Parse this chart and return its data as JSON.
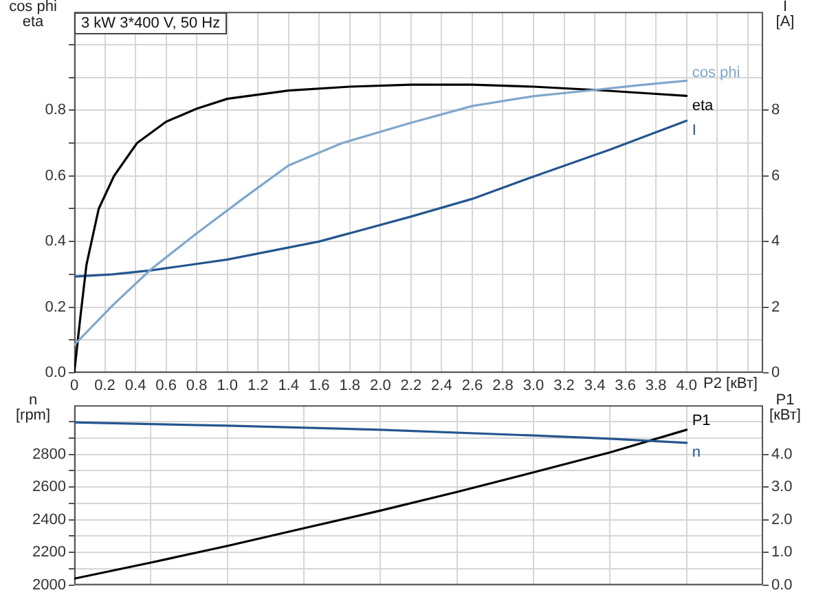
{
  "chart_data": [
    {
      "type": "line",
      "title": "3 kW 3*400 V, 50 Hz",
      "xlabel": "P2 [кВт]",
      "ylabel": "cos phi\neta",
      "y2label": "I\n[A]",
      "xlim": [
        0,
        4.5
      ],
      "xticks": [
        0,
        0.2,
        0.4,
        0.6,
        0.8,
        {
          "value": 1,
          "label": "1.0"
        },
        1.2,
        1.4,
        1.6,
        1.8,
        {
          "value": 2,
          "label": "2.0"
        },
        2.2,
        2.4,
        2.6,
        2.8,
        {
          "value": 3,
          "label": "3.0"
        },
        3.2,
        3.4,
        3.6,
        3.8,
        {
          "value": 4,
          "label": "4.0"
        },
        {
          "value": 4.2,
          "label": null
        },
        {
          "value": 4.4,
          "label": null
        }
      ],
      "ylim": [
        0,
        1.1
      ],
      "yticks": [
        {
          "value": 0,
          "label": "0.0"
        },
        {
          "value": 0.1,
          "label": null
        },
        0.2,
        {
          "value": 0.3,
          "label": null
        },
        0.4,
        {
          "value": 0.5,
          "label": null
        },
        0.6,
        {
          "value": 0.7,
          "label": null
        },
        0.8,
        {
          "value": 0.9,
          "label": null
        },
        {
          "value": 1,
          "label": null
        }
      ],
      "y2lim": [
        0,
        11
      ],
      "y2ticks": [
        0,
        2,
        4,
        6,
        8
      ],
      "grid": true,
      "legend": false,
      "marker": "none",
      "series": [
        {
          "name": "cos phi",
          "color": "#7fa7cc",
          "x": [
            0,
            0.25,
            0.5,
            0.8,
            1.1,
            1.4,
            1.75,
            2.2,
            2.6,
            3.0,
            3.4,
            3.7,
            4.0
          ],
          "values": [
            0.085,
            0.205,
            0.315,
            0.425,
            0.53,
            0.632,
            0.7,
            0.762,
            0.813,
            0.843,
            0.862,
            0.877,
            0.89
          ]
        },
        {
          "name": "eta",
          "color": "#000000",
          "x": [
            0,
            0.04,
            0.08,
            0.16,
            0.26,
            0.41,
            0.6,
            0.8,
            1.0,
            1.4,
            1.8,
            2.2,
            2.6,
            3.0,
            3.4,
            3.8,
            4.0
          ],
          "values": [
            0,
            0.17,
            0.33,
            0.5,
            0.6,
            0.7,
            0.765,
            0.805,
            0.835,
            0.86,
            0.872,
            0.878,
            0.878,
            0.872,
            0.862,
            0.85,
            0.844
          ]
        },
        {
          "name": "I",
          "color": "#23568e",
          "axis": "y2",
          "x": [
            0,
            0.25,
            0.5,
            1.0,
            1.6,
            2.2,
            2.6,
            3.0,
            3.5,
            4.0
          ],
          "values": [
            2.93,
            3.0,
            3.12,
            3.45,
            4.0,
            4.76,
            5.3,
            5.98,
            6.8,
            7.68
          ]
        }
      ]
    },
    {
      "type": "line",
      "ylabel": "n\n[rpm]",
      "y2label": "P1\n[кВт]",
      "xlim": [
        0,
        4.5
      ],
      "xticks": [
        0,
        0.5,
        1,
        1.5,
        2,
        2.5,
        3,
        3.5,
        4
      ],
      "tick_labels": "y",
      "ylim": [
        2000,
        3100
      ],
      "yticks": [
        2000,
        {
          "value": 2100,
          "label": null
        },
        2200,
        {
          "value": 2300,
          "label": null
        },
        2400,
        {
          "value": 2500,
          "label": null
        },
        2600,
        {
          "value": 2700,
          "label": null
        },
        2800,
        {
          "value": 2900,
          "label": null
        },
        {
          "value": 3000,
          "label": null
        }
      ],
      "y2lim": [
        0,
        5.5
      ],
      "y2ticks": [
        {
          "value": 0,
          "label": "0.0"
        },
        {
          "value": 1,
          "label": "1.0"
        },
        {
          "value": 2,
          "label": "2.0"
        },
        {
          "value": 3,
          "label": "3.0"
        },
        {
          "value": 4,
          "label": "4.0"
        }
      ],
      "grid": true,
      "legend": false,
      "marker": "none",
      "series": [
        {
          "name": "n",
          "color": "#23568e",
          "x": [
            0,
            1,
            2,
            3,
            3.5,
            4
          ],
          "values": [
            2995,
            2975,
            2950,
            2915,
            2895,
            2870
          ]
        },
        {
          "name": "P1",
          "color": "#000000",
          "axis": "y2",
          "x": [
            0,
            0.5,
            1,
            1.5,
            2,
            2.5,
            3,
            3.5,
            4
          ],
          "values": [
            0.2,
            0.69,
            1.2,
            1.74,
            2.28,
            2.85,
            3.45,
            4.06,
            4.75
          ]
        }
      ]
    }
  ]
}
